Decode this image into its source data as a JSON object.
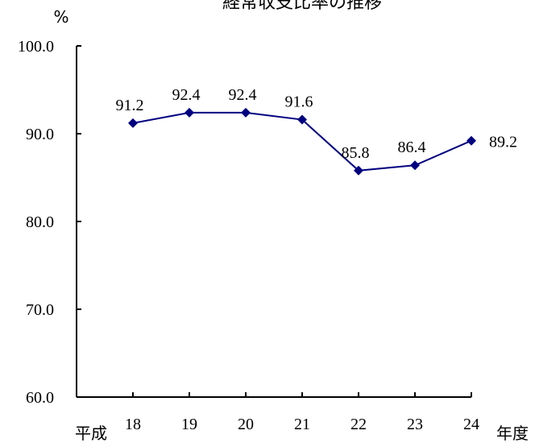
{
  "chart_data": {
    "type": "line",
    "title": "経常収支比率の推移",
    "ylabel": "%",
    "xlabel": "年度",
    "x_prefix": "平成",
    "categories": [
      "18",
      "19",
      "20",
      "21",
      "22",
      "23",
      "24"
    ],
    "values": [
      91.2,
      92.4,
      92.4,
      91.6,
      85.8,
      86.4,
      89.2
    ],
    "data_labels": [
      "91.2",
      "92.4",
      "92.4",
      "91.6",
      "85.8",
      "86.4",
      "89.2"
    ],
    "ylim": [
      60.0,
      100.0
    ],
    "y_ticks": [
      "60.0",
      "70.0",
      "80.0",
      "90.0",
      "100.0"
    ],
    "grid": false,
    "legend": "none",
    "series_color": "#000080",
    "axis_color": "#000000"
  }
}
